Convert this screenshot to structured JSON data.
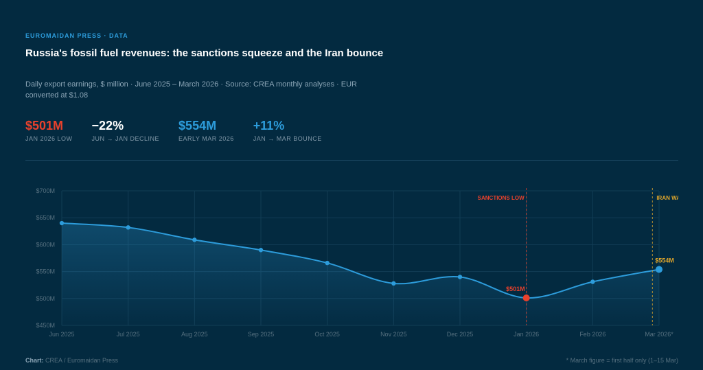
{
  "header": {
    "kicker": "EUROMAIDAN PRESS · DATA",
    "title": "Russia's fossil fuel revenues: the sanctions squeeze and the Iran bounce",
    "subtitle": "Daily export earnings, $ million · June 2025 – March 2026 · Source: CREA monthly analyses · EUR converted at $1.08"
  },
  "stats": [
    {
      "value": "$501M",
      "label": "JAN 2026 LOW",
      "color": "#e8412c"
    },
    {
      "value": "−22%",
      "label": "JUN → JAN DECLINE",
      "color": "#ffffff"
    },
    {
      "value": "$554M",
      "label": "EARLY MAR 2026",
      "color": "#2d9cdb"
    },
    {
      "value": "+11%",
      "label": "JAN → MAR BOUNCE",
      "color": "#2d9cdb"
    }
  ],
  "footer": {
    "credit_label": "Chart:",
    "credit_text": "CREA / Euromaidan Press",
    "note": "* March figure = first half only (1–15 Mar)"
  },
  "colors": {
    "line": "#2d9cdb",
    "low": "#e8412c",
    "iran": "#e0a62b",
    "grid": "#123d55",
    "axis_text": "#56707f"
  },
  "chart_data": {
    "type": "line",
    "title": "Russia's fossil fuel revenues",
    "ylabel": "Daily export earnings, $ million",
    "categories": [
      "Jun 2025",
      "Jul 2025",
      "Aug 2025",
      "Sep 2025",
      "Oct 2025",
      "Nov 2025",
      "Dec 2025",
      "Jan 2026",
      "Feb 2026",
      "Mar 2026*"
    ],
    "values": [
      640,
      632,
      609,
      590,
      566,
      528,
      540,
      501,
      531,
      554
    ],
    "ylim": [
      450,
      700
    ],
    "yticks": [
      450,
      500,
      550,
      600,
      650,
      700
    ],
    "ytick_labels": [
      "$450M",
      "$500M",
      "$550M",
      "$600M",
      "$650M",
      "$700M"
    ],
    "grid": true,
    "annotations": [
      {
        "label": "SANCTIONS LOW",
        "category_index": 7
      },
      {
        "label": "IRAN WAR",
        "category_index": 8.9
      }
    ],
    "point_labels": [
      {
        "index": 7,
        "text": "$501M"
      },
      {
        "index": 9,
        "text": "$554M"
      }
    ]
  }
}
